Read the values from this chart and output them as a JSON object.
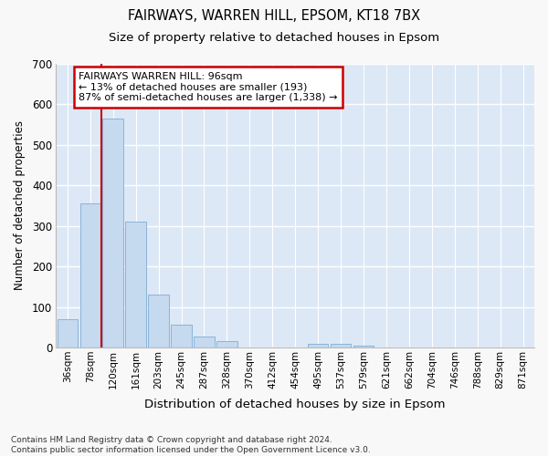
{
  "title1": "FAIRWAYS, WARREN HILL, EPSOM, KT18 7BX",
  "title2": "Size of property relative to detached houses in Epsom",
  "xlabel": "Distribution of detached houses by size in Epsom",
  "ylabel": "Number of detached properties",
  "bar_labels": [
    "36sqm",
    "78sqm",
    "120sqm",
    "161sqm",
    "203sqm",
    "245sqm",
    "287sqm",
    "328sqm",
    "370sqm",
    "412sqm",
    "454sqm",
    "495sqm",
    "537sqm",
    "579sqm",
    "621sqm",
    "662sqm",
    "704sqm",
    "746sqm",
    "788sqm",
    "829sqm",
    "871sqm"
  ],
  "bar_values": [
    70,
    355,
    565,
    310,
    130,
    57,
    27,
    15,
    0,
    0,
    0,
    10,
    10,
    5,
    0,
    0,
    0,
    0,
    0,
    0,
    0
  ],
  "bar_color": "#c5d9ef",
  "bar_edge_color": "#8ab4d8",
  "plot_bg_color": "#dce8f5",
  "fig_bg_color": "#f8f8f8",
  "grid_color": "#ffffff",
  "vline_x": 1.5,
  "vline_color": "#cc0000",
  "annotation_line1": "FAIRWAYS WARREN HILL: 96sqm",
  "annotation_line2": "← 13% of detached houses are smaller (193)",
  "annotation_line3": "87% of semi-detached houses are larger (1,338) →",
  "annotation_box_facecolor": "#ffffff",
  "annotation_box_edgecolor": "#cc0000",
  "ylim": [
    0,
    700
  ],
  "yticks": [
    0,
    100,
    200,
    300,
    400,
    500,
    600,
    700
  ],
  "footnote": "Contains HM Land Registry data © Crown copyright and database right 2024.\nContains public sector information licensed under the Open Government Licence v3.0."
}
